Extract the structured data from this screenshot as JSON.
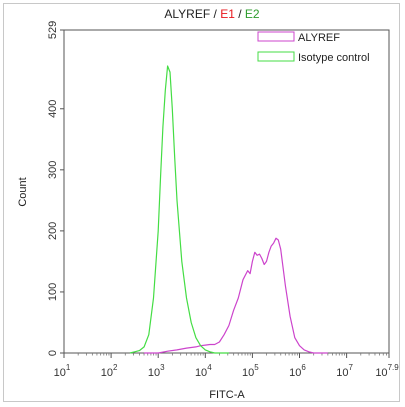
{
  "chart_data": {
    "type": "line",
    "title_parts": [
      {
        "text": "ALYREF",
        "color": "#222222"
      },
      {
        "text": " / ",
        "color": "#222222"
      },
      {
        "text": "E1",
        "color": "#e8161b"
      },
      {
        "text": " / ",
        "color": "#222222"
      },
      {
        "text": "E2",
        "color": "#2e9c2e"
      }
    ],
    "xlabel": "FITC-A",
    "ylabel": "Count",
    "x_scale": "log",
    "xlim": [
      1,
      7.9
    ],
    "ylim": [
      0,
      529
    ],
    "x_ticks": [
      {
        "value": 1,
        "base": "10",
        "exp": "1"
      },
      {
        "value": 2,
        "base": "10",
        "exp": "2"
      },
      {
        "value": 3,
        "base": "10",
        "exp": "3"
      },
      {
        "value": 4,
        "base": "10",
        "exp": "4"
      },
      {
        "value": 5,
        "base": "10",
        "exp": "5"
      },
      {
        "value": 6,
        "base": "10",
        "exp": "6"
      },
      {
        "value": 7,
        "base": "10",
        "exp": "7"
      },
      {
        "value": 7.9,
        "base": "10",
        "exp": "7.9"
      }
    ],
    "y_ticks": [
      0,
      100,
      200,
      300,
      400,
      529
    ],
    "legend": {
      "position": "top-right"
    },
    "series": [
      {
        "name": "ALYREF",
        "color": "#cc44cc",
        "points": [
          [
            2.7,
            0
          ],
          [
            3.0,
            0
          ],
          [
            3.2,
            3
          ],
          [
            3.4,
            5
          ],
          [
            3.6,
            8
          ],
          [
            3.8,
            10
          ],
          [
            3.9,
            12
          ],
          [
            4.0,
            13
          ],
          [
            4.1,
            14
          ],
          [
            4.2,
            14
          ],
          [
            4.3,
            18
          ],
          [
            4.4,
            30
          ],
          [
            4.5,
            45
          ],
          [
            4.6,
            70
          ],
          [
            4.7,
            90
          ],
          [
            4.8,
            120
          ],
          [
            4.9,
            135
          ],
          [
            4.95,
            130
          ],
          [
            5.0,
            150
          ],
          [
            5.05,
            165
          ],
          [
            5.1,
            160
          ],
          [
            5.15,
            162
          ],
          [
            5.2,
            155
          ],
          [
            5.25,
            145
          ],
          [
            5.3,
            150
          ],
          [
            5.35,
            165
          ],
          [
            5.4,
            175
          ],
          [
            5.45,
            180
          ],
          [
            5.5,
            188
          ],
          [
            5.55,
            185
          ],
          [
            5.6,
            170
          ],
          [
            5.7,
            110
          ],
          [
            5.8,
            60
          ],
          [
            5.9,
            25
          ],
          [
            6.0,
            12
          ],
          [
            6.1,
            5
          ],
          [
            6.2,
            2
          ],
          [
            6.3,
            0
          ],
          [
            6.6,
            0
          ]
        ]
      },
      {
        "name": "Isotype control",
        "color": "#44dd44",
        "points": [
          [
            2.4,
            0
          ],
          [
            2.5,
            2
          ],
          [
            2.6,
            4
          ],
          [
            2.7,
            10
          ],
          [
            2.8,
            30
          ],
          [
            2.9,
            90
          ],
          [
            3.0,
            200
          ],
          [
            3.05,
            290
          ],
          [
            3.1,
            370
          ],
          [
            3.15,
            430
          ],
          [
            3.2,
            470
          ],
          [
            3.25,
            460
          ],
          [
            3.3,
            400
          ],
          [
            3.35,
            320
          ],
          [
            3.4,
            250
          ],
          [
            3.5,
            150
          ],
          [
            3.6,
            90
          ],
          [
            3.7,
            50
          ],
          [
            3.8,
            25
          ],
          [
            3.9,
            12
          ],
          [
            4.0,
            5
          ],
          [
            4.1,
            2
          ],
          [
            4.2,
            0
          ],
          [
            4.5,
            0
          ]
        ]
      }
    ]
  }
}
